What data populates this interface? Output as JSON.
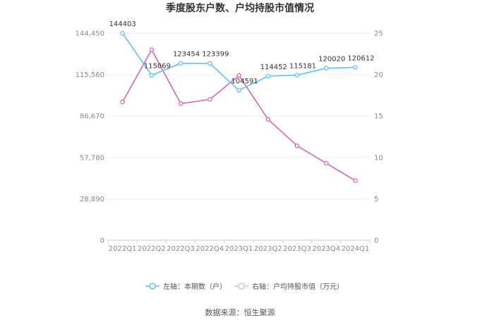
{
  "chart_data": {
    "type": "line",
    "title": "季度股东户数、户均持股市值情况",
    "categories": [
      "2022Q1",
      "2022Q2",
      "2022Q3",
      "2022Q4",
      "2023Q1",
      "2023Q2",
      "2023Q3",
      "2023Q4",
      "2024Q1"
    ],
    "left_axis": {
      "ticks": [
        "0",
        "28,890",
        "57,780",
        "86,670",
        "115,560",
        "144,450"
      ],
      "range": [
        0,
        144450
      ]
    },
    "right_axis": {
      "ticks": [
        "0",
        "5",
        "10",
        "15",
        "20",
        "25"
      ],
      "range": [
        0,
        25
      ]
    },
    "series": [
      {
        "name": "左轴：本期数（户）",
        "axis": "left",
        "color": "#5bc4ef",
        "values": [
          144403,
          115069,
          123454,
          123399,
          104591,
          114452,
          115181,
          120020,
          120612
        ],
        "labels": [
          "144403",
          "115069",
          "123454",
          "123399",
          "104591",
          "114452",
          "115181",
          "120020",
          "120612"
        ]
      },
      {
        "name": "右轴：户均持股市值（万元）",
        "axis": "right",
        "color": "#d466b4",
        "values": [
          16.7,
          23.0,
          16.5,
          17.0,
          19.9,
          14.6,
          11.4,
          9.3,
          7.2
        ]
      }
    ],
    "grid": true,
    "legend_position": "bottom"
  },
  "source": "数据来源：恒生聚源"
}
